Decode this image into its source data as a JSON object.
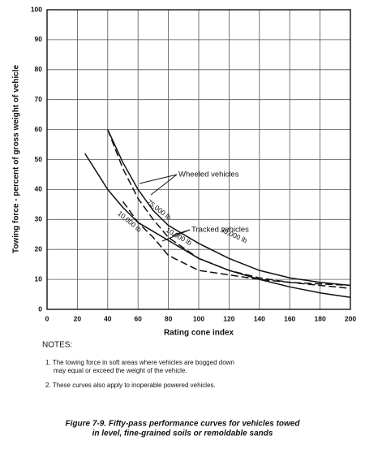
{
  "chart_data": {
    "type": "line",
    "ylabel": "Towing force - percent of gross weight of vehicle",
    "xlabel": "Rating cone index",
    "x": [
      25,
      40,
      50,
      60,
      70,
      80,
      100,
      120,
      140,
      160,
      180,
      200
    ],
    "series": [
      {
        "color": "#111111",
        "dash": true,
        "values": [
          null,
          60,
          47,
          37,
          30,
          24,
          17,
          13,
          10.5,
          9,
          8,
          7
        ]
      },
      {
        "color": "#111111",
        "dash": true,
        "values": [
          null,
          null,
          36,
          29,
          24,
          18,
          13,
          11.5,
          10,
          9,
          8.5,
          8
        ]
      },
      {
        "color": "#111111",
        "dash": false,
        "values": [
          null,
          60,
          49,
          40,
          33,
          28,
          22,
          17,
          13,
          10.5,
          9,
          8
        ]
      },
      {
        "color": "#111111",
        "dash": false,
        "values": [
          52,
          40,
          34,
          29,
          26,
          23,
          17,
          13,
          10,
          7.5,
          5.5,
          4
        ]
      }
    ],
    "annotations": [
      "Wheeled vehicles",
      "Tracked vehicles",
      "75,000 lb",
      "10,000 lb",
      "10,000 lb",
      "30,000 lb"
    ],
    "xlim": [
      0,
      200
    ],
    "ylim": [
      0,
      100
    ],
    "xticks": [
      0,
      20,
      40,
      60,
      80,
      100,
      120,
      140,
      160,
      180,
      200
    ],
    "yticks": [
      0,
      10,
      20,
      30,
      40,
      50,
      60,
      70,
      80,
      90,
      100
    ],
    "grid": true
  },
  "notes": {
    "heading": "NOTES:",
    "items": [
      [
        "1. The  towing force in soft areas where vehicles are bogged down",
        "may equal or exceed the weight of the vehicle."
      ],
      [
        "2. These curves also apply to inoperable powered vehicles."
      ]
    ]
  },
  "caption": [
    "Figure 7-9.  Fifty-pass performance curves for vehicles towed",
    "in level, fine-grained soils or remoldable sands"
  ]
}
